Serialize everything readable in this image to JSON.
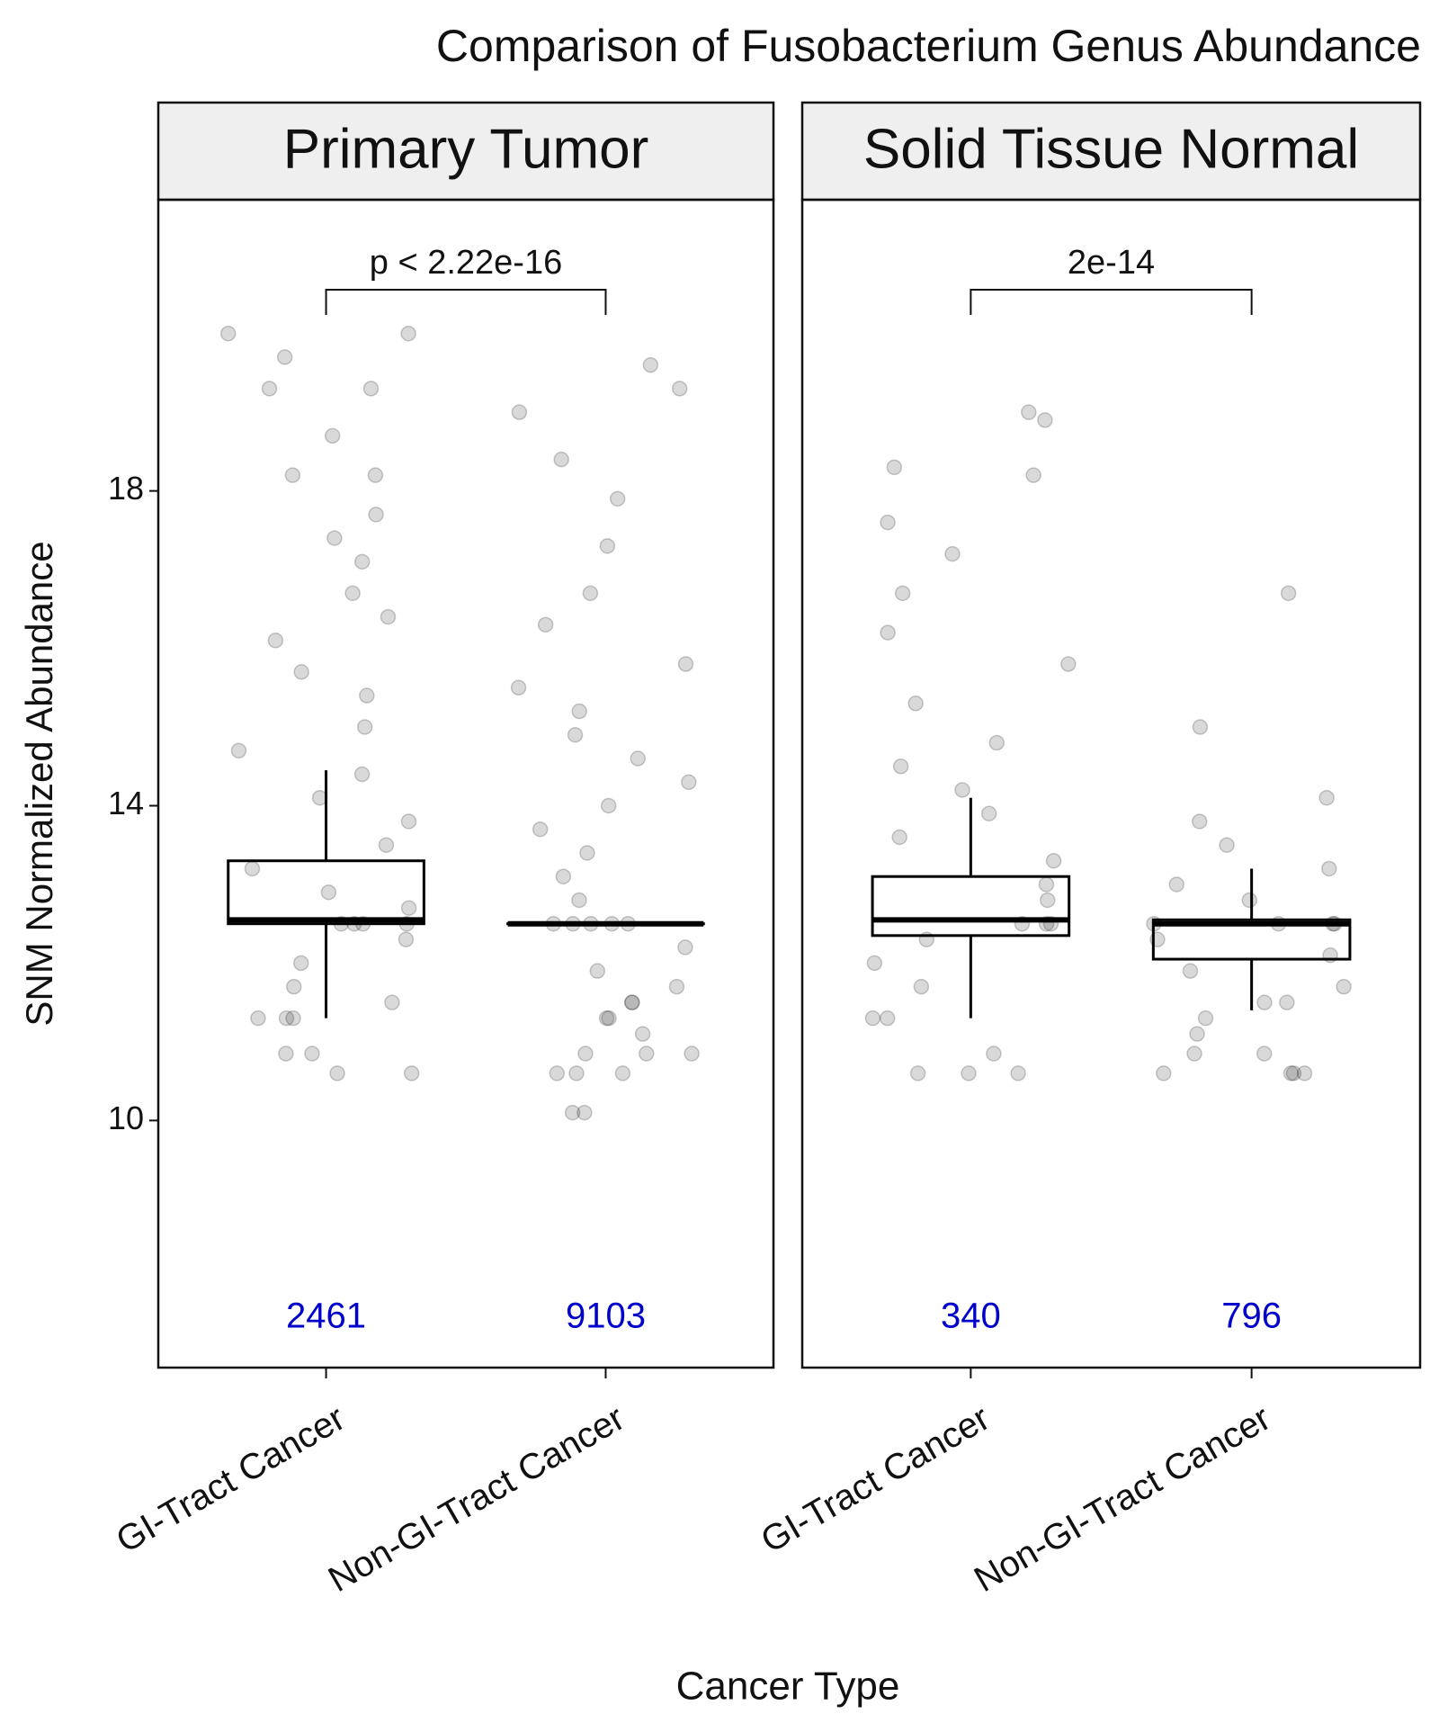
{
  "chart_data": {
    "type": "boxplot",
    "title": "Comparison of Fusobacterium Genus Abundance",
    "xlabel": "Cancer Type",
    "ylabel": "SNM Normalized Abundance",
    "ylim": [
      6.86,
      21.7
    ],
    "yticks": [
      10,
      14,
      18
    ],
    "count_color": "#0000cc",
    "facets": [
      {
        "name": "Primary Tumor",
        "categories": [
          "GI-Tract Cancer",
          "Non-GI-Tract Cancer"
        ],
        "counts": [
          "2461",
          "9103"
        ],
        "p_label": "p < 2.22e-16",
        "boxes": [
          {
            "whislo": 11.3,
            "q1": 12.5,
            "median": 12.55,
            "q3": 13.3,
            "whishi": 14.45
          },
          {
            "whislo": 12.5,
            "q1": 12.5,
            "median": 12.5,
            "q3": 12.5,
            "whishi": 12.5
          }
        ],
        "points": [
          [
            20.0,
            20.0,
            19.7,
            19.3,
            19.3,
            18.7,
            18.2,
            18.2,
            17.7,
            17.4,
            17.1,
            16.7,
            16.4,
            16.1,
            15.7,
            15.4,
            15.0,
            14.7,
            14.4,
            14.1,
            13.8,
            13.5,
            13.2,
            12.9,
            12.7,
            12.5,
            12.5,
            12.5,
            12.5,
            12.3,
            12.0,
            11.7,
            11.5,
            11.3,
            11.3,
            11.3,
            10.85,
            10.85,
            10.6,
            10.6
          ],
          [
            19.6,
            19.3,
            19.0,
            18.4,
            17.9,
            17.3,
            16.7,
            16.3,
            15.8,
            15.5,
            15.2,
            14.9,
            14.6,
            14.3,
            14.0,
            13.7,
            13.4,
            13.1,
            12.8,
            12.5,
            12.5,
            12.5,
            12.5,
            12.5,
            12.2,
            11.9,
            11.7,
            11.5,
            11.5,
            11.3,
            11.3,
            11.1,
            10.85,
            10.85,
            10.85,
            10.6,
            10.6,
            10.6,
            10.1,
            10.1
          ]
        ]
      },
      {
        "name": "Solid Tissue Normal",
        "categories": [
          "GI-Tract Cancer",
          "Non-GI-Tract Cancer"
        ],
        "counts": [
          "340",
          "796"
        ],
        "p_label": "2e-14",
        "boxes": [
          {
            "whislo": 11.3,
            "q1": 12.35,
            "median": 12.55,
            "q3": 13.1,
            "whishi": 14.1
          },
          {
            "whislo": 11.4,
            "q1": 12.05,
            "median": 12.5,
            "q3": 12.55,
            "whishi": 13.2
          }
        ],
        "points": [
          [
            19.0,
            18.9,
            18.3,
            18.2,
            17.6,
            17.2,
            16.7,
            16.2,
            15.8,
            15.3,
            14.8,
            14.5,
            14.2,
            13.9,
            13.6,
            13.3,
            13.0,
            12.8,
            12.5,
            12.5,
            12.5,
            12.3,
            12.0,
            11.7,
            11.3,
            11.3,
            10.85,
            10.6,
            10.6,
            10.6
          ],
          [
            16.7,
            15.0,
            14.1,
            13.8,
            13.5,
            13.2,
            13.0,
            12.8,
            12.5,
            12.5,
            12.5,
            12.5,
            12.3,
            12.1,
            11.9,
            11.7,
            11.5,
            11.5,
            11.3,
            11.1,
            10.85,
            10.85,
            10.6,
            10.6,
            10.6,
            10.6
          ]
        ]
      }
    ]
  }
}
